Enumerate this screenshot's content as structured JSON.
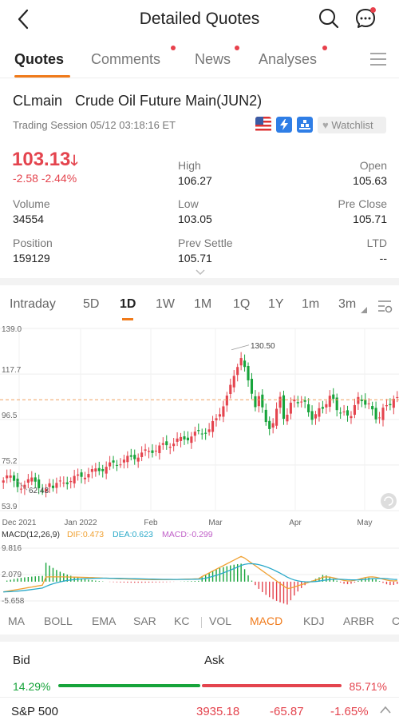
{
  "header": {
    "title": "Detailed Quotes",
    "icons": [
      "back-arrow-icon",
      "search-icon",
      "chat-icon"
    ]
  },
  "tabs": [
    {
      "label": "Quotes",
      "active": true,
      "badge": false
    },
    {
      "label": "Comments",
      "active": false,
      "badge": true
    },
    {
      "label": "News",
      "active": false,
      "badge": true
    },
    {
      "label": "Analyses",
      "active": false,
      "badge": true
    }
  ],
  "instrument": {
    "code": "CLmain",
    "name": "Crude Oil Future Main(JUN2)",
    "session": "Trading Session 05/12 03:18:16 ET",
    "watchlist_label": "Watchlist",
    "price": "103.13",
    "change": "-2.58",
    "change_pct": "-2.44%"
  },
  "stats": {
    "high_label": "High",
    "high": "106.27",
    "open_label": "Open",
    "open": "105.63",
    "volume_label": "Volume",
    "volume": "34554",
    "low_label": "Low",
    "low": "103.05",
    "preclose_label": "Pre Close",
    "preclose": "105.71",
    "position_label": "Position",
    "position": "159129",
    "prevsettle_label": "Prev Settle",
    "prevsettle": "105.71",
    "ltd_label": "LTD",
    "ltd": "--"
  },
  "periods": [
    "Intraday",
    "5D",
    "1D",
    "1W",
    "1M",
    "1Q",
    "1Y",
    "1m",
    "3m"
  ],
  "active_period": "1D",
  "chart_data": {
    "type": "candlestick",
    "y_ticks": [
      "139.0",
      "117.7",
      "96.5",
      "75.2",
      "53.9"
    ],
    "ylim": [
      53.9,
      139.0
    ],
    "x_labels": [
      "Dec 2021",
      "Jan 2022",
      "Feb",
      "Mar",
      "Apr",
      "May"
    ],
    "max_annotation": "130.50",
    "min_annotation": "62.43",
    "reference_line": 105.71,
    "colors": {
      "up": "#e4444e",
      "down": "#17a43b",
      "reference": "#f0a060"
    },
    "macd": {
      "title": "MACD(12,26,9)",
      "dif": "DIF:0.473",
      "dea": "DEA:0.623",
      "macd": "MACD:-0.299",
      "y_ticks": [
        "9.816",
        "2.079",
        "-5.658"
      ],
      "ylim": [
        -5.658,
        9.816
      ],
      "colors": {
        "dif": "#f0a030",
        "dea": "#2aa9c9",
        "macd": "#c060c8"
      }
    }
  },
  "indicators": [
    "MA",
    "BOLL",
    "EMA",
    "SAR",
    "KC",
    "VOL",
    "MACD",
    "KDJ",
    "ARBR",
    "C"
  ],
  "active_indicator": "MACD",
  "bidask": {
    "bid_label": "Bid",
    "ask_label": "Ask",
    "bid_pct": "14.29%",
    "ask_pct": "85.71%",
    "bid_fraction": 0.1429
  },
  "ticker": {
    "name": "S&P 500",
    "value": "3935.18",
    "change": "-65.87",
    "change_pct": "-1.65%"
  }
}
